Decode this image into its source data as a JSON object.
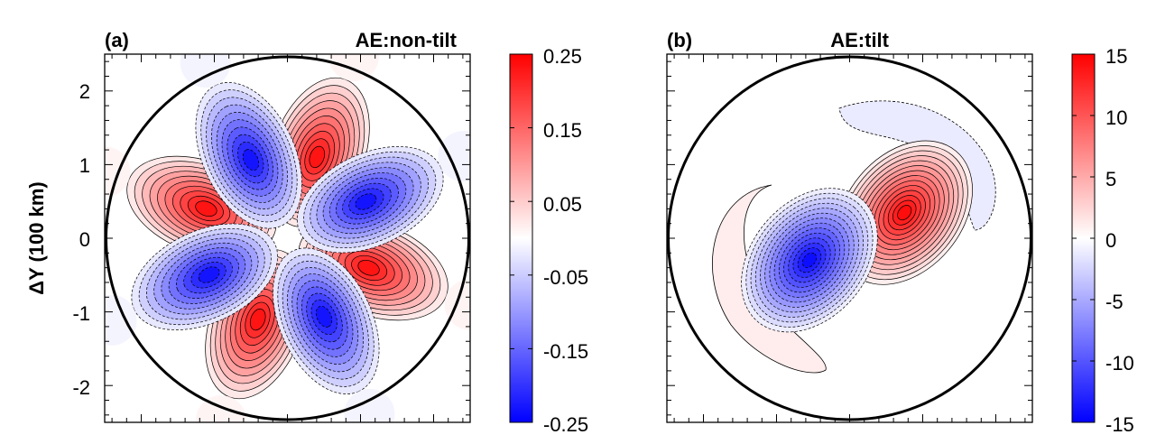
{
  "chart_data": [
    {
      "type": "heatmap",
      "panel_label": "(a)",
      "title": "AE:non-tilt",
      "ylabel": "ΔY (100 km)",
      "ylim": [
        -2.5,
        2.5
      ],
      "xlim": [
        -2.5,
        2.5
      ],
      "yticks": [
        -2,
        -1,
        0,
        1,
        2
      ],
      "ytick_labels": [
        "-2",
        "-1",
        "0",
        "1",
        "2"
      ],
      "xtick_labels_shown": false,
      "domain_circle_radius": 2.45,
      "colorbar": {
        "range": [
          -0.25,
          0.25
        ],
        "ticks": [
          -0.25,
          -0.15,
          -0.05,
          0.05,
          0.15,
          0.25
        ],
        "tick_labels": [
          "-0.25",
          "-0.15",
          "-0.05",
          "0.05",
          "0.15",
          "0.25"
        ],
        "colormap": "blue-white-red",
        "colors": {
          "low": "#0000ff",
          "mid": "#ffffff",
          "high": "#ff0000"
        }
      },
      "field": {
        "pattern": "azimuthal wavenumber-4 (8 alternating lobes)",
        "wavenumber": 4,
        "radius_of_max": 1.25,
        "max_value": 0.25,
        "positive_lobe_angles_deg": [
          160,
          70,
          -20,
          -110
        ],
        "negative_lobe_angles_deg": [
          115,
          25,
          -65,
          -155
        ]
      },
      "contours": {
        "positive_style": "solid",
        "negative_style": "dashed",
        "color": "#000000"
      }
    },
    {
      "type": "heatmap",
      "panel_label": "(b)",
      "title": "AE:tilt",
      "ylabel": "",
      "ylim": [
        -2.5,
        2.5
      ],
      "xlim": [
        -2.5,
        2.5
      ],
      "ytick_labels_shown": false,
      "xtick_labels_shown": false,
      "domain_circle_radius": 2.45,
      "colorbar": {
        "range": [
          -15,
          15
        ],
        "ticks": [
          -15,
          -10,
          -5,
          0,
          5,
          10,
          15
        ],
        "tick_labels": [
          "-15",
          "-10",
          "-5",
          "0",
          "5",
          "10",
          "15"
        ],
        "colormap": "blue-white-red",
        "colors": {
          "low": "#0000ff",
          "mid": "#ffffff",
          "high": "#ff0000"
        }
      },
      "field": {
        "pattern": "tilted dipole with outer weak crescents",
        "positive_center": [
          0.75,
          0.35
        ],
        "negative_center": [
          -0.55,
          -0.3
        ],
        "max_value": 15,
        "outer_positive_crescent": "weak, lower-left",
        "outer_negative_crescent": "weak, upper-right"
      },
      "contours": {
        "positive_style": "solid",
        "negative_style": "dashed",
        "color": "#000000"
      }
    }
  ]
}
